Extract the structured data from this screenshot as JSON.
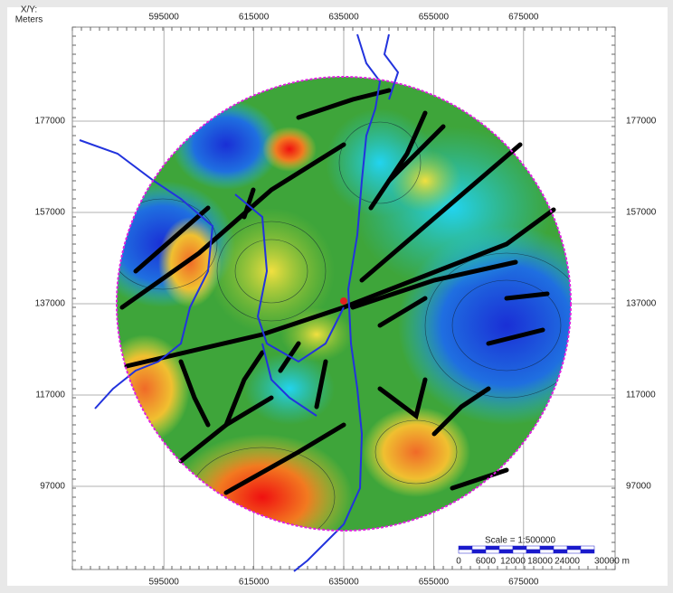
{
  "axes": {
    "corner_label": [
      "X/Y:",
      "Meters"
    ],
    "x_ticks": [
      595000,
      615000,
      635000,
      655000,
      675000
    ],
    "y_ticks": [
      177000,
      157000,
      137000,
      117000,
      97000
    ]
  },
  "scale": {
    "label": "Scale = 1:500000",
    "ticks": [
      "0",
      "6000",
      "12000",
      "18000",
      "24000",
      "30000 m"
    ]
  }
}
